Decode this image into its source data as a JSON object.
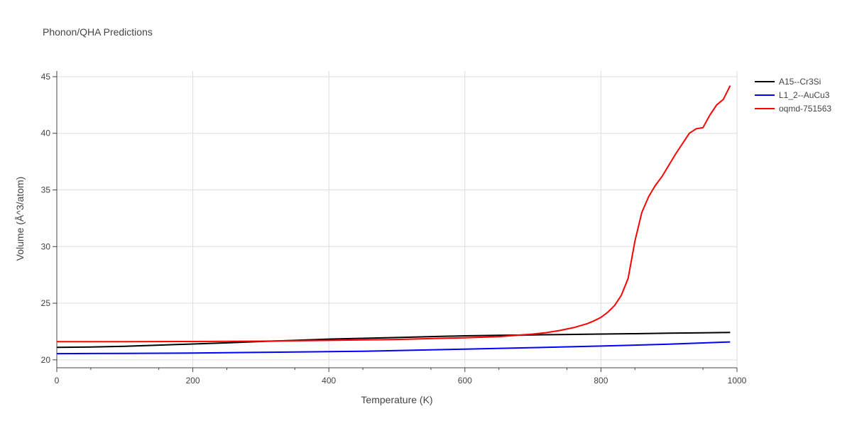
{
  "chart_data": {
    "type": "line",
    "title": "Phonon/QHA Predictions",
    "xlabel": "Temperature (K)",
    "ylabel": "Volume (Å^3/atom)",
    "xlim": [
      0,
      1000
    ],
    "ylim": [
      19.3,
      45.5
    ],
    "xticks": [
      0,
      200,
      400,
      600,
      800,
      1000
    ],
    "yticks": [
      20,
      25,
      30,
      35,
      40,
      45
    ],
    "grid": true,
    "legend_position": "top-right",
    "series": [
      {
        "name": "A15--Cr3Si",
        "color": "#000000",
        "x": [
          0,
          50,
          100,
          150,
          200,
          250,
          300,
          350,
          400,
          450,
          500,
          550,
          600,
          650,
          700,
          750,
          800,
          850,
          900,
          950,
          990
        ],
        "y": [
          21.1,
          21.13,
          21.2,
          21.3,
          21.4,
          21.5,
          21.62,
          21.72,
          21.83,
          21.9,
          21.97,
          22.05,
          22.12,
          22.17,
          22.2,
          22.24,
          22.28,
          22.31,
          22.35,
          22.39,
          22.42
        ]
      },
      {
        "name": "L1_2--AuCu3",
        "color": "#0000ff",
        "x": [
          0,
          100,
          200,
          300,
          400,
          450,
          500,
          600,
          700,
          800,
          900,
          990
        ],
        "y": [
          20.55,
          20.57,
          20.6,
          20.66,
          20.72,
          20.76,
          20.82,
          20.95,
          21.08,
          21.22,
          21.38,
          21.58
        ]
      },
      {
        "name": "oqmd-751563",
        "color": "#ff0000",
        "x": [
          0,
          100,
          200,
          300,
          400,
          500,
          600,
          650,
          700,
          720,
          740,
          760,
          780,
          790,
          800,
          810,
          820,
          830,
          840,
          850,
          860,
          870,
          880,
          890,
          900,
          910,
          920,
          930,
          940,
          950,
          960,
          970,
          980,
          990
        ],
        "y": [
          21.6,
          21.6,
          21.62,
          21.65,
          21.72,
          21.8,
          21.95,
          22.05,
          22.28,
          22.4,
          22.6,
          22.85,
          23.2,
          23.45,
          23.75,
          24.2,
          24.8,
          25.7,
          27.2,
          30.5,
          33.0,
          34.4,
          35.4,
          36.2,
          37.2,
          38.2,
          39.1,
          40.0,
          40.4,
          40.5,
          41.6,
          42.5,
          43.0,
          44.2
        ]
      }
    ]
  }
}
